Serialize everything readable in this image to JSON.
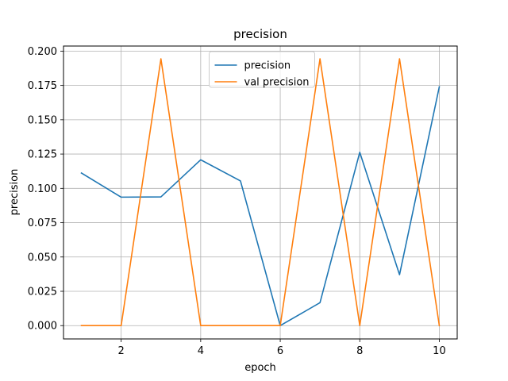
{
  "chart_data": {
    "type": "line",
    "title": "precision",
    "xlabel": "epoch",
    "ylabel": "precision",
    "x": [
      1,
      2,
      3,
      4,
      5,
      6,
      7,
      8,
      9,
      10
    ],
    "xlim": [
      0.55,
      10.45
    ],
    "ylim": [
      -0.0097,
      0.2037
    ],
    "x_ticks": [
      2,
      4,
      6,
      8,
      10
    ],
    "x_tick_labels": [
      "2",
      "4",
      "6",
      "8",
      "10"
    ],
    "y_ticks": [
      0.0,
      0.025,
      0.05,
      0.075,
      0.1,
      0.125,
      0.15,
      0.175,
      0.2
    ],
    "y_tick_labels": [
      "0.000",
      "0.025",
      "0.050",
      "0.075",
      "0.100",
      "0.125",
      "0.150",
      "0.175",
      "0.200"
    ],
    "grid": true,
    "legend_position": "upper center",
    "series": [
      {
        "name": "precision",
        "color": "#1f77b4",
        "values": [
          0.1112,
          0.0936,
          0.0938,
          0.1208,
          0.1054,
          0.0,
          0.0167,
          0.1263,
          0.0371,
          0.174
        ]
      },
      {
        "name": "val precision",
        "color": "#ff7f0e",
        "values": [
          0.0,
          0.0,
          0.1944,
          0.0,
          0.0,
          0.0,
          0.1944,
          0.0,
          0.1944,
          0.0
        ]
      }
    ]
  }
}
